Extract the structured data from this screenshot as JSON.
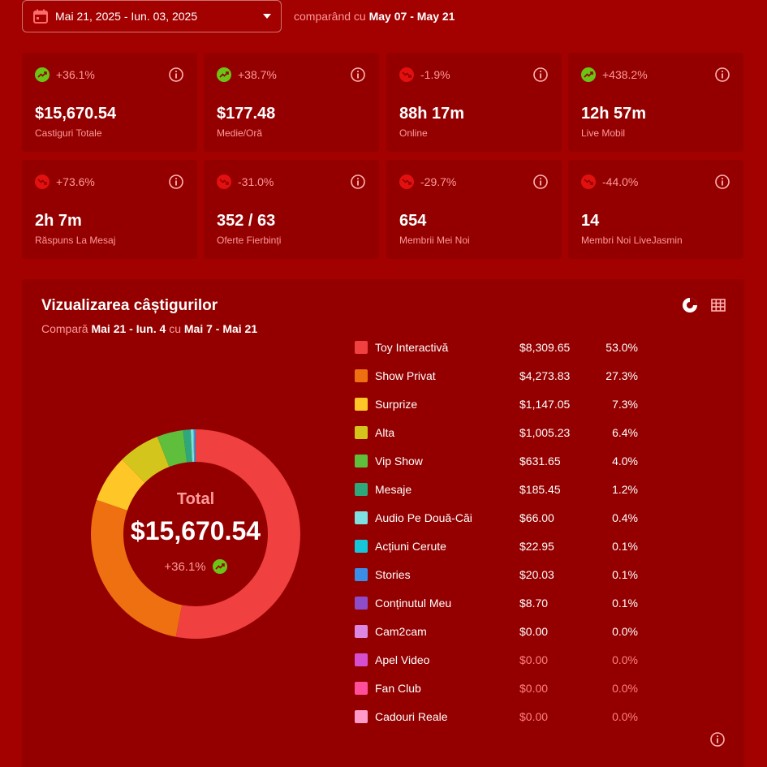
{
  "header": {
    "date_range": "Mai 21, 2025 - Iun. 03, 2025",
    "compare_prefix": "comparând cu",
    "compare_range": "May 07 - May 21"
  },
  "stats": [
    {
      "trend": "up",
      "pct": "+36.1%",
      "value": "$15,670.54",
      "label": "Castiguri Totale"
    },
    {
      "trend": "up",
      "pct": "+38.7%",
      "value": "$177.48",
      "label": "Medie/Oră"
    },
    {
      "trend": "down",
      "pct": "-1.9%",
      "value": "88h 17m",
      "label": "Online"
    },
    {
      "trend": "up",
      "pct": "+438.2%",
      "value": "12h 57m",
      "label": "Live Mobil"
    },
    {
      "trend": "down",
      "pct": "+73.6%",
      "value": "2h 7m",
      "label": "Răspuns La Mesaj"
    },
    {
      "trend": "down",
      "pct": "-31.0%",
      "value": "352 / 63",
      "label": "Oferte Fierbinți"
    },
    {
      "trend": "down",
      "pct": "-29.7%",
      "value": "654",
      "label": "Membrii Mei Noi"
    },
    {
      "trend": "down",
      "pct": "-44.0%",
      "value": "14",
      "label": "Membri Noi LiveJasmin"
    }
  ],
  "earnings": {
    "title": "Vizualizarea câștigurilor",
    "compare_prefix": "Compară",
    "period_a": "Mai 21 - Iun. 4",
    "compare_word": "cu",
    "period_b": "Mai 7 - Mai 21",
    "center_label": "Total",
    "center_value": "$15,670.54",
    "center_pct": "+36.1%"
  },
  "chart_data": {
    "type": "pie",
    "categories": [
      "Toy Interactivă",
      "Show Privat",
      "Surprize",
      "Alta",
      "Vip Show",
      "Mesaje",
      "Audio Pe Două-Căi",
      "Acțiuni Cerute",
      "Stories",
      "Conținutul Meu",
      "Cam2cam",
      "Apel Video",
      "Fan Club",
      "Cadouri Reale"
    ],
    "values": [
      8309.65,
      4273.83,
      1147.05,
      1005.23,
      631.65,
      185.45,
      66.0,
      22.95,
      20.03,
      8.7,
      0.0,
      0.0,
      0.0,
      0.0
    ],
    "amounts": [
      "$8,309.65",
      "$4,273.83",
      "$1,147.05",
      "$1,005.23",
      "$631.65",
      "$185.45",
      "$66.00",
      "$22.95",
      "$20.03",
      "$8.70",
      "$0.00",
      "$0.00",
      "$0.00",
      "$0.00"
    ],
    "percents": [
      "53.0%",
      "27.3%",
      "7.3%",
      "6.4%",
      "4.0%",
      "1.2%",
      "0.4%",
      "0.1%",
      "0.1%",
      "0.1%",
      "0.0%",
      "0.0%",
      "0.0%",
      "0.0%"
    ],
    "colors": [
      "#f04040",
      "#ee7010",
      "#ffc627",
      "#d4c51c",
      "#5fbf3c",
      "#2ea87a",
      "#7ee0e0",
      "#14c6d8",
      "#3b8ee8",
      "#8e4cc8",
      "#dd88e0",
      "#d64fcf",
      "#ff4f9b",
      "#ff9ac8"
    ],
    "dim_values": [
      false,
      false,
      false,
      false,
      false,
      false,
      false,
      false,
      false,
      false,
      false,
      true,
      true,
      true
    ]
  }
}
